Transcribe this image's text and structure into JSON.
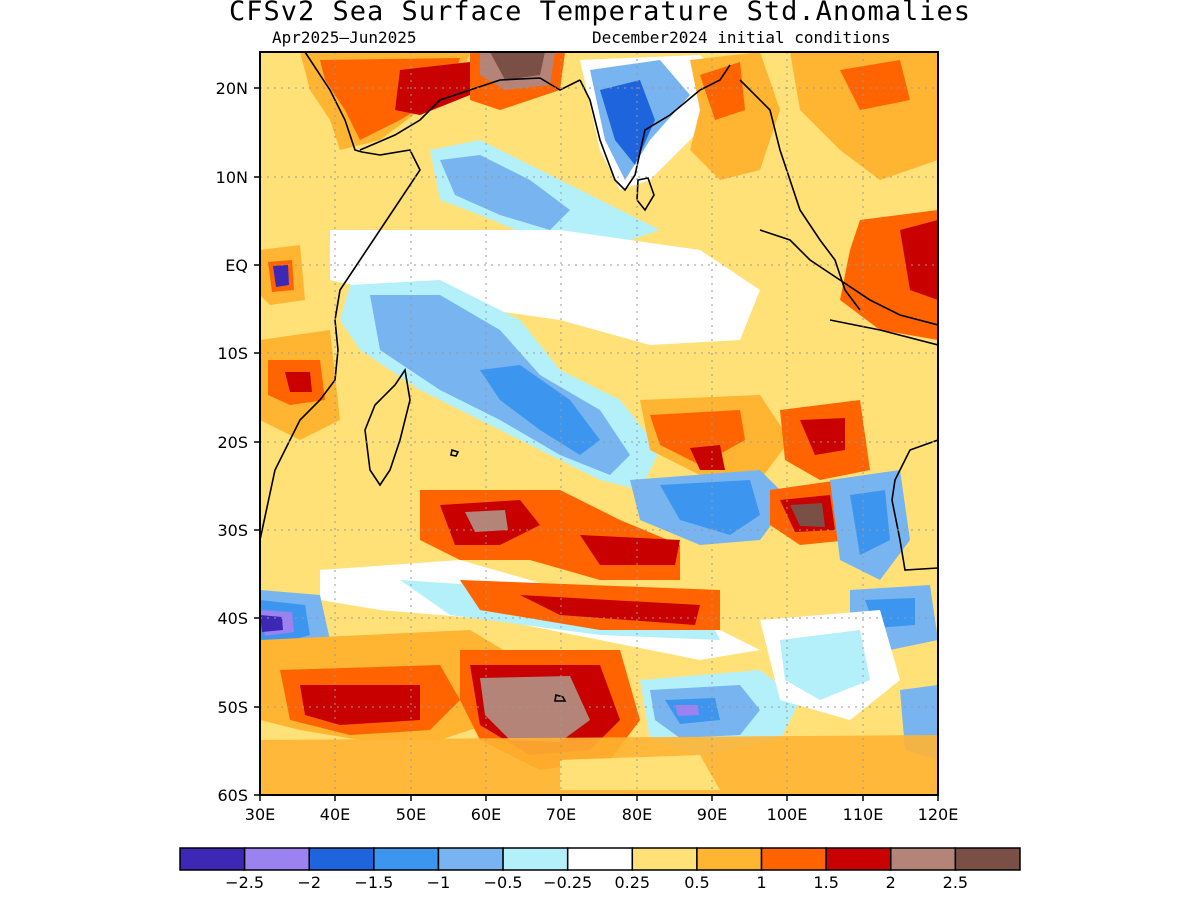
{
  "title": "CFSv2 Sea Surface Temperature Std.Anomalies",
  "subtitle_left": "Apr2025–Jun2025",
  "subtitle_right": "December2024 initial conditions",
  "map": {
    "lon_range": [
      30,
      120
    ],
    "lat_range": [
      -60,
      24
    ],
    "x_ticks": [
      "30E",
      "40E",
      "50E",
      "60E",
      "70E",
      "80E",
      "90E",
      "100E",
      "110E",
      "120E"
    ],
    "y_ticks": [
      "20N",
      "10N",
      "EQ",
      "10S",
      "20S",
      "30S",
      "40S",
      "50S",
      "60S"
    ]
  },
  "colorbar": {
    "colors": [
      "#3c28b4",
      "#9a82f0",
      "#1e64dc",
      "#3c96f0",
      "#78b4f0",
      "#b4f0fa",
      "#ffffff",
      "#ffe178",
      "#ffb432",
      "#ff6400",
      "#c80000",
      "#b48478",
      "#7a5046"
    ],
    "labels": [
      "−2.5",
      "−2",
      "−1.5",
      "−1",
      "−0.5",
      "−0.25",
      "0.25",
      "0.5",
      "1",
      "1.5",
      "2",
      "2.5"
    ]
  }
}
